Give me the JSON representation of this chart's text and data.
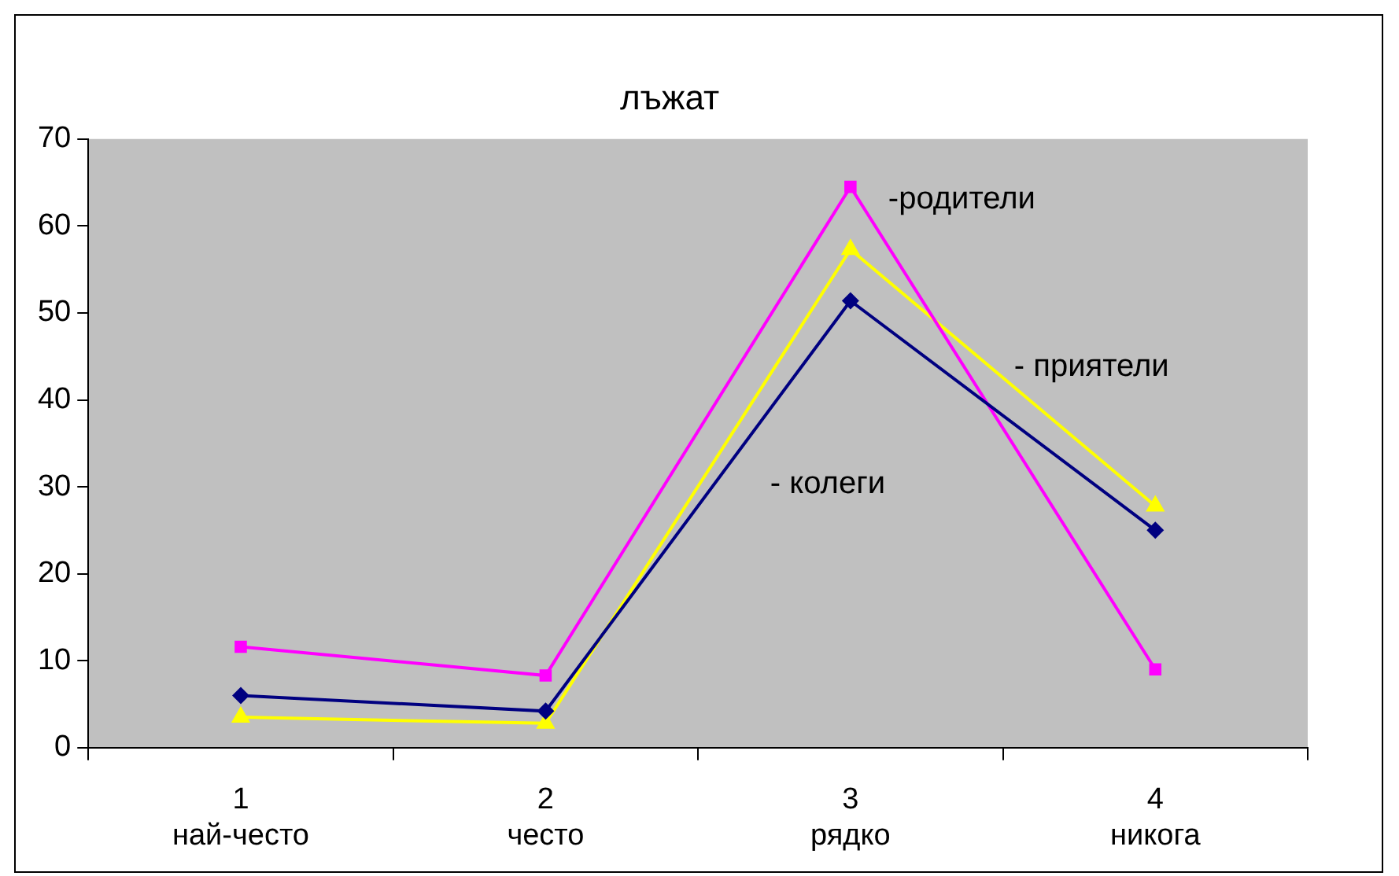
{
  "chart_data": {
    "type": "line",
    "title": "лъжат",
    "categories": [
      "1\nнай-често",
      "2\nчесто",
      "3\nрядко",
      "4\nникога"
    ],
    "series": [
      {
        "name": "- колеги",
        "color": "#000080",
        "marker": "diamond",
        "values": [
          6.0,
          4.2,
          51.4,
          25.0
        ]
      },
      {
        "name": "-родители",
        "color": "#ff00ff",
        "marker": "square",
        "values": [
          11.6,
          8.3,
          64.5,
          9.0
        ]
      },
      {
        "name": "- приятели",
        "color": "#ffff00",
        "marker": "triangle",
        "values": [
          3.5,
          2.8,
          57.3,
          27.8
        ]
      }
    ],
    "ylim": [
      0,
      70
    ],
    "yticks": [
      0,
      10,
      20,
      30,
      40,
      50,
      60,
      70
    ],
    "grid": false,
    "legend": false
  }
}
